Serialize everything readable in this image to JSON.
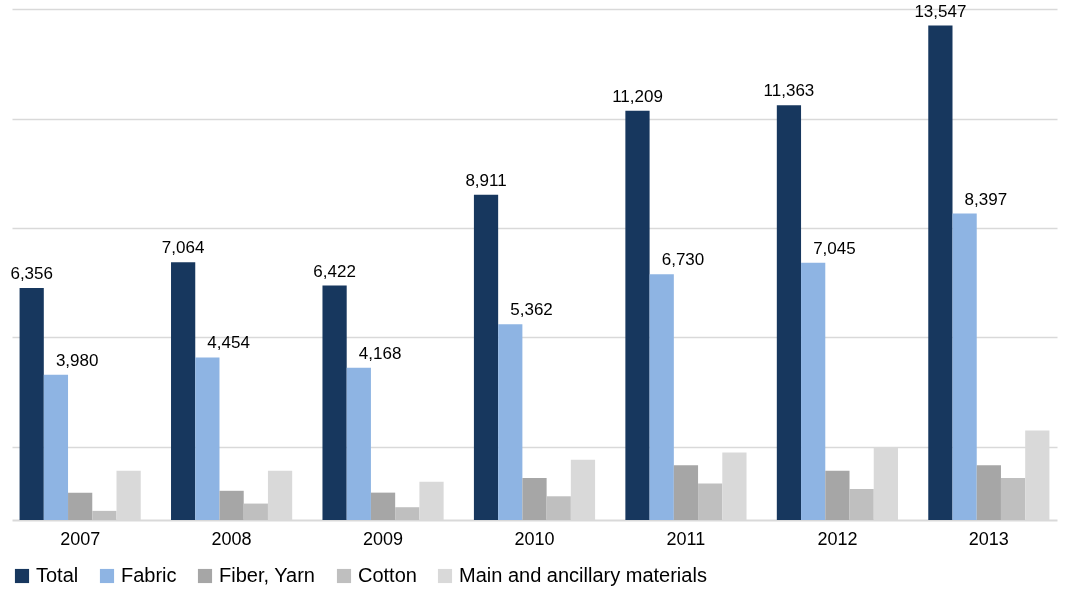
{
  "chart_data": {
    "type": "bar",
    "categories": [
      "2007",
      "2008",
      "2009",
      "2010",
      "2011",
      "2012",
      "2013"
    ],
    "series": [
      {
        "name": "Total",
        "color": "#17375e",
        "values": [
          6356,
          7064,
          6422,
          8911,
          11209,
          11363,
          13547
        ],
        "value_labels": [
          "6,356",
          "7,064",
          "6,422",
          "8,911",
          "11,209",
          "11,363",
          "13,547"
        ]
      },
      {
        "name": "Fabric",
        "color": "#8eb4e3",
        "values": [
          3980,
          4454,
          4168,
          5362,
          6730,
          7045,
          8397
        ],
        "value_labels": [
          "3,980",
          "4,454",
          "4,168",
          "5,362",
          "6,730",
          "7,045",
          "8,397"
        ]
      },
      {
        "name": "Fiber, Yarn",
        "color": "#a6a6a6",
        "values": [
          750,
          800,
          750,
          1150,
          1500,
          1350,
          1500
        ]
      },
      {
        "name": "Cotton",
        "color": "#bfbfbf",
        "values": [
          250,
          450,
          350,
          650,
          1000,
          850,
          1150
        ]
      },
      {
        "name": "Main and ancillary materials",
        "color": "#d9d9d9",
        "values": [
          1350,
          1350,
          1050,
          1650,
          1850,
          2000,
          2450
        ]
      }
    ],
    "ylim": [
      0,
      14000
    ],
    "yticks": [
      {
        "value": 2000,
        "label": null
      },
      {
        "value": 5000,
        "label": null
      },
      {
        "value": 8000,
        "label": null
      },
      {
        "value": 11000,
        "label": null
      },
      {
        "value": 14000,
        "label": null
      }
    ],
    "tick_labels": "x",
    "grid": "y",
    "legend": "bottom"
  }
}
